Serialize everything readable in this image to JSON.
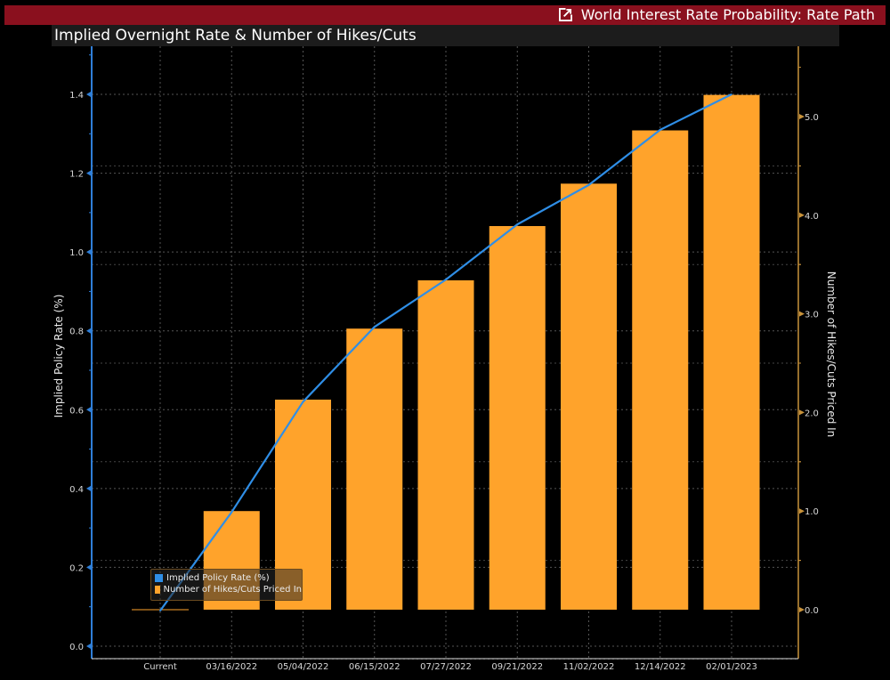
{
  "window": {
    "title": "World Interest Rate Probability: Rate Path",
    "title_icon": "external-link-icon",
    "subtitle": "Implied Overnight Rate & Number of Hikes/Cuts"
  },
  "colors": {
    "titlebar": "#8a101e",
    "line": "#2f8ee6",
    "bars": "#ffa32b",
    "left_axis": "#2f7fd8",
    "right_axis": "#c8923a"
  },
  "legend": {
    "items": [
      {
        "label": "Implied Policy Rate (%)",
        "color": "#2f8ee6"
      },
      {
        "label": "Number of Hikes/Cuts Priced In",
        "color": "#ffa32b"
      }
    ]
  },
  "chart_data": {
    "type": "bar",
    "title": "Implied Overnight Rate & Number of Hikes/Cuts",
    "categories": [
      "Current",
      "03/16/2022",
      "05/04/2022",
      "06/15/2022",
      "07/27/2022",
      "09/21/2022",
      "11/02/2022",
      "12/14/2022",
      "02/01/2023"
    ],
    "series": [
      {
        "name": "Number of Hikes/Cuts Priced In",
        "type": "bar",
        "axis": "right",
        "values": [
          0.0,
          1.0,
          2.13,
          2.85,
          3.34,
          3.89,
          4.32,
          4.86,
          5.22
        ]
      },
      {
        "name": "Implied Policy Rate (%)",
        "type": "line",
        "axis": "left",
        "values": [
          0.09,
          0.34,
          0.62,
          0.81,
          0.93,
          1.07,
          1.17,
          1.31,
          1.4
        ]
      }
    ],
    "ylabel": "Implied Policy Rate (%)",
    "y2label": "Number of Hikes/Cuts Priced In",
    "xlabel": "",
    "ylim": [
      -0.05,
      1.55
    ],
    "y2lim": [
      -0.5,
      5.75
    ],
    "yticks": [
      "0.0",
      "0.2",
      "0.4",
      "0.6",
      "0.8",
      "1.0",
      "1.2",
      "1.4"
    ],
    "y2ticks": [
      "0.0",
      "1.0",
      "2.0",
      "3.0",
      "4.0",
      "5.0"
    ],
    "grid": true,
    "legend_position": "bottom-left"
  }
}
